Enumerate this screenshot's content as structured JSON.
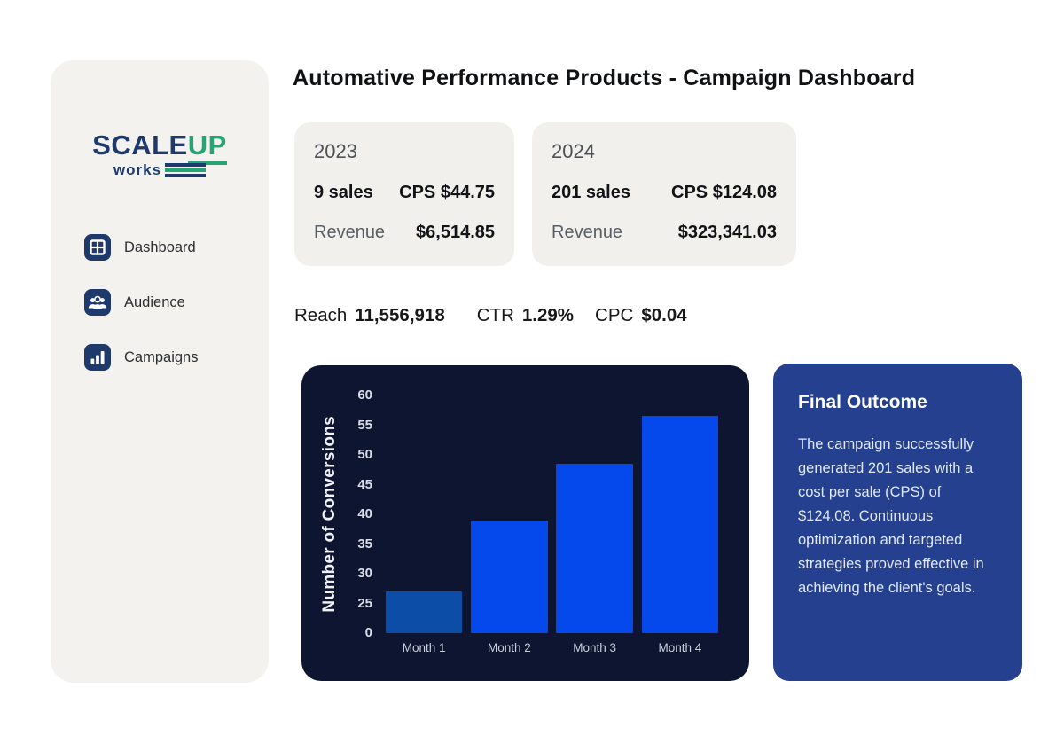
{
  "page": {
    "title": "Automative Performance Products - Campaign Dashboard"
  },
  "sidebar": {
    "logo": {
      "scale": "SCALE",
      "up": "UP",
      "works": "works"
    },
    "items": [
      {
        "label": "Dashboard",
        "icon": "dashboard-grid-icon"
      },
      {
        "label": "Audience",
        "icon": "audience-people-icon"
      },
      {
        "label": "Campaigns",
        "icon": "campaigns-bars-icon"
      }
    ]
  },
  "stat_cards": [
    {
      "year": "2023",
      "sales": "9 sales",
      "cps": "CPS $44.75",
      "revenue_label": "Revenue",
      "revenue_value": "$6,514.85"
    },
    {
      "year": "2024",
      "sales": "201 sales",
      "cps": "CPS $124.08",
      "revenue_label": "Revenue",
      "revenue_value": "$323,341.03"
    }
  ],
  "metrics": {
    "reach_label": "Reach",
    "reach_value": "11,556,918",
    "ctr_label": "CTR",
    "ctr_value": "1.29%",
    "cpc_label": "CPC",
    "cpc_value": "$0.04"
  },
  "chart_data": {
    "type": "bar",
    "categories": [
      "Month 1",
      "Month 2",
      "Month 3",
      "Month 4"
    ],
    "values": [
      27,
      39,
      48.5,
      56.5
    ],
    "title": "",
    "xlabel": "",
    "ylabel": "Number of Conversions",
    "yticks": [
      0,
      25,
      30,
      35,
      40,
      45,
      50,
      55,
      60
    ],
    "ytick_spacing": "uniform-per-tick (non-linear axis: 0 to 25 gap equals each 5-unit gap)",
    "grid": false,
    "legend": "none",
    "background": "#0d1530",
    "bar_colors": [
      "#0c4da8",
      "#0548ec",
      "#0548ec",
      "#0548ec"
    ]
  },
  "final_outcome": {
    "title": "Final Outcome",
    "body": "The campaign successfully generated 201 sales with a cost per sale (CPS) of $124.08. Continuous optimization and targeted strategies proved effective in achieving the client's goals."
  },
  "colors": {
    "brand_navy": "#1e3a6d",
    "brand_green": "#27a475",
    "sidebar_bg": "#f3f2ef",
    "stat_card_bg": "#f1f0ed",
    "chart_bg": "#0d1530",
    "bar_blue_dark": "#0c4da8",
    "bar_blue_bright": "#0548ec",
    "outcome_card_bg": "#24408f"
  }
}
